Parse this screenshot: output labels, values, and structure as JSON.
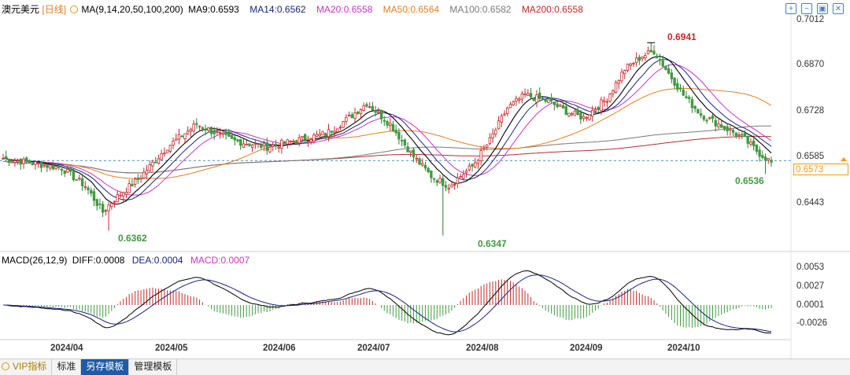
{
  "header": {
    "symbol": "澳元美元",
    "period": "[日线]",
    "ma_main": "MA(9,14,20,50,100,200)",
    "ma9": "MA9:0.6593",
    "ma14": "MA14:0.6562",
    "ma20": "MA20:0.6558",
    "ma50": "MA50:0.6564",
    "ma100": "MA100:0.6582",
    "ma200": "MA200:0.6558"
  },
  "colors": {
    "up": "#c62828",
    "down": "#3f9a3f",
    "ma9": "#000000",
    "ma14": "#1a237e",
    "ma20": "#cc33cc",
    "ma50": "#e67e22",
    "ma100": "#7a7a7a",
    "ma200": "#b03030",
    "last_price": "#f39c12"
  },
  "price_axis": {
    "labels": [
      "0.7012",
      "0.6870",
      "0.6728",
      "0.6585",
      "0.6443"
    ]
  },
  "last_price": "0.6573",
  "annotations": {
    "high": "0.6941",
    "low1": "0.6362",
    "low2": "0.6347",
    "low3": "0.6536"
  },
  "macd": {
    "title": "MACD(26,12,9)",
    "diff": "DIFF:0.0008",
    "dea": "DEA:0.0004",
    "macd": "MACD:0.0007",
    "axis_labels": [
      "0.0053",
      "0.0027",
      "0.0001",
      "-0.0026"
    ]
  },
  "dates": [
    "2024/04",
    "2024/05",
    "2024/06",
    "2024/07",
    "2024/08",
    "2024/09",
    "2024/10"
  ],
  "tabs": [
    "VIP指标",
    "标准",
    "另存模板",
    "管理模板"
  ],
  "top_icons": [
    "plus-icon",
    "minus-icon",
    "toggle-icon",
    "close-icon"
  ],
  "chart_data": {
    "type": "candlestick",
    "series_close_anchors": [
      [
        0,
        0.6585
      ],
      [
        20,
        0.6555
      ],
      [
        28,
        0.65
      ],
      [
        34,
        0.642
      ],
      [
        38,
        0.646
      ],
      [
        46,
        0.652
      ],
      [
        56,
        0.662
      ],
      [
        66,
        0.669
      ],
      [
        78,
        0.664
      ],
      [
        90,
        0.662
      ],
      [
        100,
        0.664
      ],
      [
        110,
        0.666
      ],
      [
        118,
        0.671
      ],
      [
        124,
        0.6755
      ],
      [
        132,
        0.669
      ],
      [
        140,
        0.659
      ],
      [
        146,
        0.653
      ],
      [
        152,
        0.65
      ],
      [
        160,
        0.656
      ],
      [
        166,
        0.664
      ],
      [
        172,
        0.674
      ],
      [
        178,
        0.678
      ],
      [
        186,
        0.676
      ],
      [
        192,
        0.673
      ],
      [
        198,
        0.671
      ],
      [
        206,
        0.677
      ],
      [
        212,
        0.686
      ],
      [
        218,
        0.69
      ],
      [
        222,
        0.6915
      ],
      [
        226,
        0.686
      ],
      [
        232,
        0.678
      ],
      [
        238,
        0.672
      ],
      [
        244,
        0.669
      ],
      [
        252,
        0.665
      ],
      [
        258,
        0.66
      ],
      [
        262,
        0.6573
      ]
    ],
    "last_price": 0.6573,
    "high": 0.6941,
    "low": 0.6347
  }
}
